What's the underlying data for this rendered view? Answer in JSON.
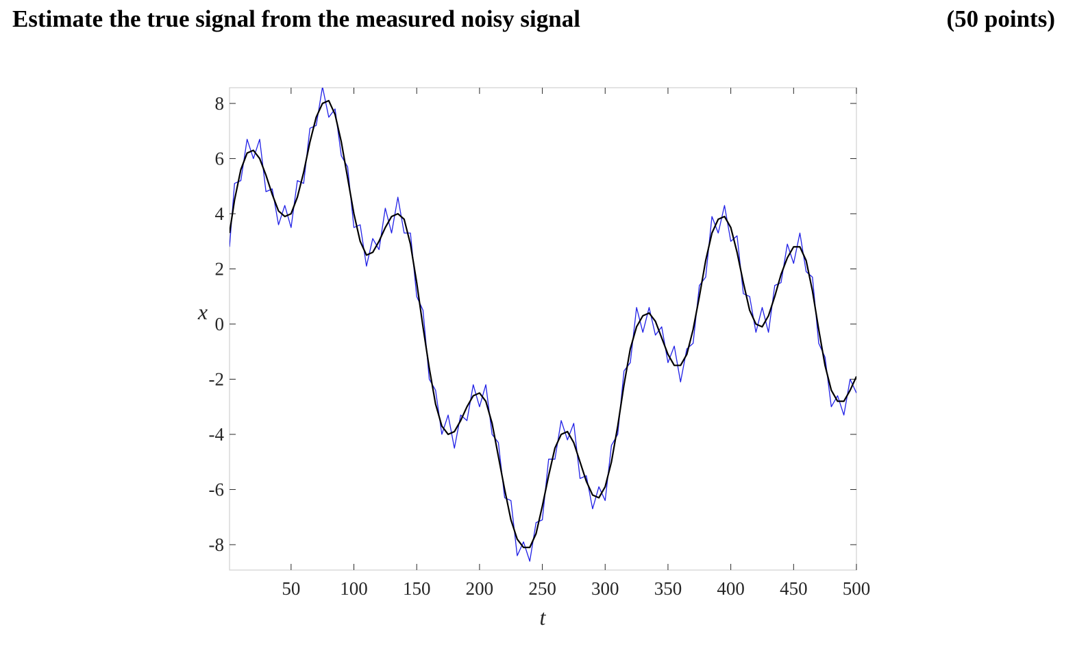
{
  "header": {
    "title": "Estimate the true signal from the measured noisy signal",
    "points": "(50 points)"
  },
  "chart_data": {
    "type": "line",
    "x_label": "t",
    "y_label": "x",
    "x": [
      1,
      5,
      10,
      15,
      20,
      25,
      30,
      35,
      40,
      45,
      50,
      55,
      60,
      65,
      70,
      75,
      80,
      85,
      90,
      95,
      100,
      105,
      110,
      115,
      120,
      125,
      130,
      135,
      140,
      145,
      150,
      155,
      160,
      165,
      170,
      175,
      180,
      185,
      190,
      195,
      200,
      205,
      210,
      215,
      220,
      225,
      230,
      235,
      240,
      245,
      250,
      255,
      260,
      265,
      270,
      275,
      280,
      285,
      290,
      295,
      300,
      305,
      310,
      315,
      320,
      325,
      330,
      335,
      340,
      345,
      350,
      355,
      360,
      365,
      370,
      375,
      380,
      385,
      390,
      395,
      400,
      405,
      410,
      415,
      420,
      425,
      430,
      435,
      440,
      445,
      450,
      455,
      460,
      465,
      470,
      475,
      480,
      485,
      490,
      495,
      500
    ],
    "series": [
      {
        "color": "#1f1fe6",
        "width": 1.3,
        "values": [
          2.8,
          5.1,
          5.2,
          6.7,
          6.0,
          6.7,
          4.8,
          4.9,
          3.6,
          4.3,
          3.5,
          5.2,
          5.1,
          7.1,
          7.2,
          8.6,
          7.5,
          7.8,
          6.1,
          5.7,
          3.5,
          3.6,
          2.1,
          3.1,
          2.7,
          4.2,
          3.3,
          4.6,
          3.3,
          3.3,
          1.0,
          0.5,
          -2.0,
          -2.4,
          -4.0,
          -3.3,
          -4.5,
          -3.3,
          -3.5,
          -2.2,
          -3.0,
          -2.2,
          -4.0,
          -4.3,
          -6.3,
          -6.4,
          -8.4,
          -7.9,
          -8.6,
          -7.2,
          -7.1,
          -4.9,
          -4.9,
          -3.5,
          -4.2,
          -3.6,
          -5.6,
          -5.5,
          -6.7,
          -5.9,
          -6.4,
          -4.4,
          -4.0,
          -1.7,
          -1.4,
          0.6,
          -0.3,
          0.6,
          -0.4,
          -0.1,
          -1.4,
          -0.8,
          -2.1,
          -0.9,
          -0.7,
          1.4,
          1.7,
          3.9,
          3.3,
          4.3,
          3.0,
          3.2,
          1.1,
          1.0,
          -0.3,
          0.6,
          -0.3,
          1.4,
          1.5,
          2.9,
          2.2,
          3.3,
          1.9,
          1.7,
          -0.7,
          -1.2,
          -3.0,
          -2.6,
          -3.3,
          -2.0,
          -2.5
        ]
      },
      {
        "color": "#000000",
        "width": 2.2,
        "values": [
          3.3,
          4.5,
          5.6,
          6.2,
          6.3,
          6.0,
          5.4,
          4.7,
          4.1,
          3.9,
          4.0,
          4.6,
          5.5,
          6.6,
          7.5,
          8.0,
          8.1,
          7.6,
          6.6,
          5.3,
          4.0,
          3.0,
          2.5,
          2.6,
          3.0,
          3.5,
          3.9,
          4.0,
          3.8,
          2.9,
          1.5,
          -0.1,
          -1.6,
          -2.9,
          -3.7,
          -4.0,
          -3.9,
          -3.5,
          -3.0,
          -2.6,
          -2.5,
          -2.8,
          -3.6,
          -4.8,
          -6.0,
          -7.1,
          -7.8,
          -8.1,
          -8.1,
          -7.6,
          -6.6,
          -5.5,
          -4.5,
          -4.0,
          -3.9,
          -4.3,
          -5.0,
          -5.7,
          -6.2,
          -6.3,
          -5.9,
          -5.0,
          -3.7,
          -2.2,
          -0.9,
          -0.1,
          0.3,
          0.4,
          0.1,
          -0.5,
          -1.1,
          -1.5,
          -1.5,
          -1.1,
          -0.2,
          1.0,
          2.3,
          3.3,
          3.8,
          3.9,
          3.5,
          2.6,
          1.5,
          0.5,
          0.0,
          -0.1,
          0.3,
          1.0,
          1.8,
          2.4,
          2.8,
          2.8,
          2.3,
          1.2,
          -0.2,
          -1.5,
          -2.4,
          -2.8,
          -2.8,
          -2.4,
          -1.9
        ]
      }
    ],
    "xlim": [
      1,
      500
    ],
    "ylim": [
      -8.92,
      8.57
    ],
    "xticks": [
      50,
      100,
      150,
      200,
      250,
      300,
      350,
      400,
      450,
      500
    ],
    "yticks": [
      -8,
      -6,
      -4,
      -2,
      0,
      2,
      4,
      6,
      8
    ],
    "grid": false
  }
}
